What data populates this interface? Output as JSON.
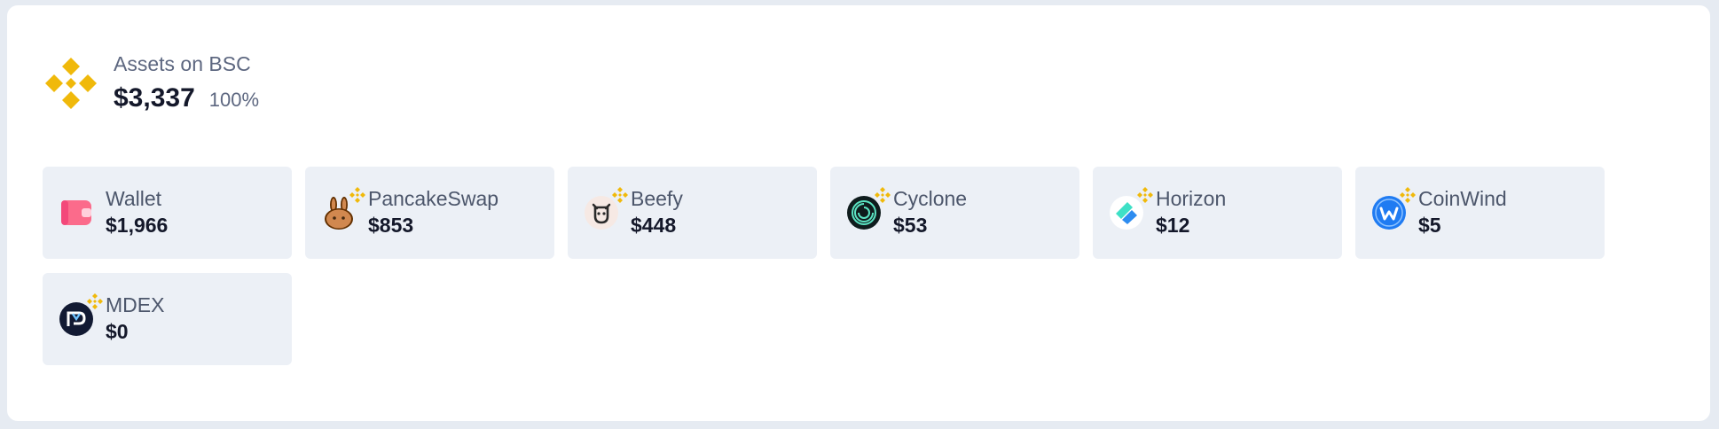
{
  "header": {
    "label": "Assets on BSC",
    "value": "$3,337",
    "percent": "100%",
    "icon": "bnb-icon",
    "accent_color": "#f0b90b"
  },
  "items": [
    {
      "name": "Wallet",
      "value": "$1,966",
      "icon": "wallet-icon",
      "badge": false
    },
    {
      "name": "PancakeSwap",
      "value": "$853",
      "icon": "pancakeswap-icon",
      "badge": true
    },
    {
      "name": "Beefy",
      "value": "$448",
      "icon": "beefy-icon",
      "badge": true
    },
    {
      "name": "Cyclone",
      "value": "$53",
      "icon": "cyclone-icon",
      "badge": true
    },
    {
      "name": "Horizon",
      "value": "$12",
      "icon": "horizon-icon",
      "badge": true
    },
    {
      "name": "CoinWind",
      "value": "$5",
      "icon": "coinwind-icon",
      "badge": true
    },
    {
      "name": "MDEX",
      "value": "$0",
      "icon": "mdex-icon",
      "badge": true
    }
  ]
}
